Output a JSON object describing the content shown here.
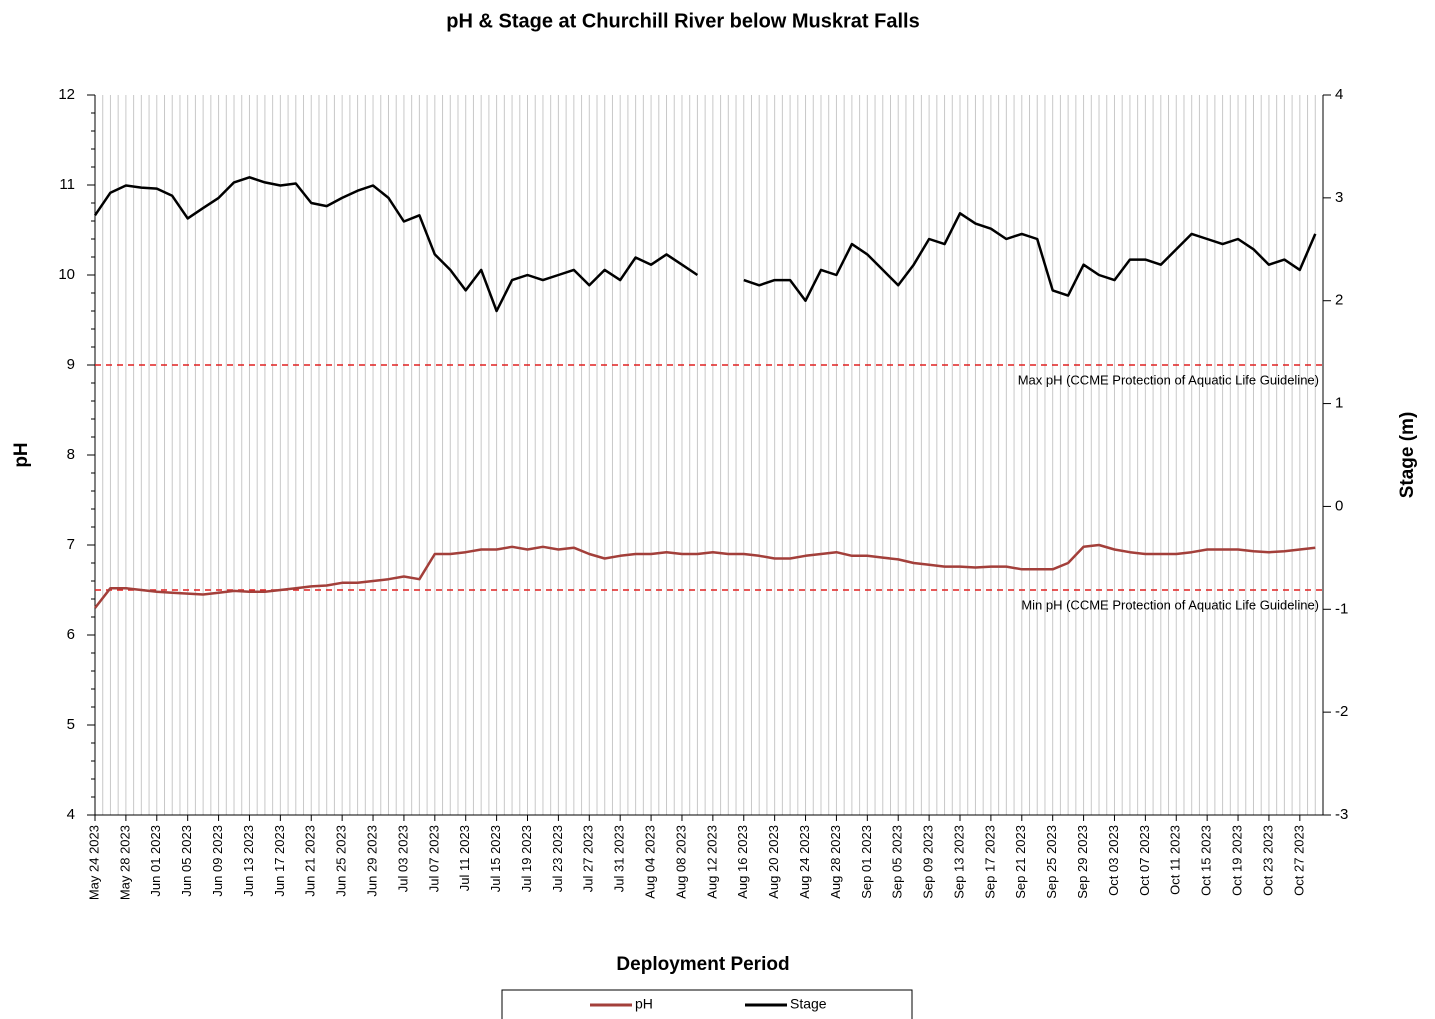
{
  "chart_data": {
    "type": "line",
    "title": "pH & Stage at Churchill River below Muskrat Falls",
    "x_label": "Deployment Period",
    "y_label": "pH",
    "y2_label": "Stage (m)",
    "xlim": [
      "2023-05-24",
      "2023-10-30"
    ],
    "xticks": [
      {
        "value": "2023-05-24",
        "label": "May 24 2023"
      },
      {
        "value": "2023-05-28",
        "label": "May 28 2023"
      },
      {
        "value": "2023-06-01",
        "label": "Jun 01 2023"
      },
      {
        "value": "2023-06-05",
        "label": "Jun 05 2023"
      },
      {
        "value": "2023-06-09",
        "label": "Jun 09 2023"
      },
      {
        "value": "2023-06-13",
        "label": "Jun 13 2023"
      },
      {
        "value": "2023-06-17",
        "label": "Jun 17 2023"
      },
      {
        "value": "2023-06-21",
        "label": "Jun 21 2023"
      },
      {
        "value": "2023-06-25",
        "label": "Jun 25 2023"
      },
      {
        "value": "2023-06-29",
        "label": "Jun 29 2023"
      },
      {
        "value": "2023-07-03",
        "label": "Jul 03 2023"
      },
      {
        "value": "2023-07-07",
        "label": "Jul 07 2023"
      },
      {
        "value": "2023-07-11",
        "label": "Jul 11 2023"
      },
      {
        "value": "2023-07-15",
        "label": "Jul 15 2023"
      },
      {
        "value": "2023-07-19",
        "label": "Jul 19 2023"
      },
      {
        "value": "2023-07-23",
        "label": "Jul 23 2023"
      },
      {
        "value": "2023-07-27",
        "label": "Jul 27 2023"
      },
      {
        "value": "2023-07-31",
        "label": "Jul 31 2023"
      },
      {
        "value": "2023-08-04",
        "label": "Aug 04 2023"
      },
      {
        "value": "2023-08-08",
        "label": "Aug 08 2023"
      },
      {
        "value": "2023-08-12",
        "label": "Aug 12 2023"
      },
      {
        "value": "2023-08-16",
        "label": "Aug 16 2023"
      },
      {
        "value": "2023-08-20",
        "label": "Aug 20 2023"
      },
      {
        "value": "2023-08-24",
        "label": "Aug 24 2023"
      },
      {
        "value": "2023-08-28",
        "label": "Aug 28 2023"
      },
      {
        "value": "2023-09-01",
        "label": "Sep 01 2023"
      },
      {
        "value": "2023-09-05",
        "label": "Sep 05 2023"
      },
      {
        "value": "2023-09-09",
        "label": "Sep 09 2023"
      },
      {
        "value": "2023-09-13",
        "label": "Sep 13 2023"
      },
      {
        "value": "2023-09-17",
        "label": "Sep 17 2023"
      },
      {
        "value": "2023-09-21",
        "label": "Sep 21 2023"
      },
      {
        "value": "2023-09-25",
        "label": "Sep 25 2023"
      },
      {
        "value": "2023-09-29",
        "label": "Sep 29 2023"
      },
      {
        "value": "2023-10-03",
        "label": "Oct 03 2023"
      },
      {
        "value": "2023-10-07",
        "label": "Oct 07 2023"
      },
      {
        "value": "2023-10-11",
        "label": "Oct 11 2023"
      },
      {
        "value": "2023-10-15",
        "label": "Oct 15 2023"
      },
      {
        "value": "2023-10-19",
        "label": "Oct 19 2023"
      },
      {
        "value": "2023-10-23",
        "label": "Oct 23 2023"
      },
      {
        "value": "2023-10-27",
        "label": "Oct 27 2023"
      }
    ],
    "ylim": [
      4,
      12
    ],
    "yticks": [
      4,
      5,
      6,
      7,
      8,
      9,
      10,
      11,
      12
    ],
    "y2lim": [
      -3,
      4
    ],
    "y2ticks": [
      -3,
      -2,
      -1,
      0,
      1,
      2,
      3,
      4
    ],
    "grid": true,
    "x": [
      "2023-05-24",
      "2023-05-26",
      "2023-05-28",
      "2023-05-30",
      "2023-06-01",
      "2023-06-03",
      "2023-06-05",
      "2023-06-07",
      "2023-06-09",
      "2023-06-11",
      "2023-06-13",
      "2023-06-15",
      "2023-06-17",
      "2023-06-19",
      "2023-06-21",
      "2023-06-23",
      "2023-06-25",
      "2023-06-27",
      "2023-06-29",
      "2023-07-01",
      "2023-07-03",
      "2023-07-05",
      "2023-07-07",
      "2023-07-09",
      "2023-07-11",
      "2023-07-13",
      "2023-07-15",
      "2023-07-17",
      "2023-07-19",
      "2023-07-21",
      "2023-07-23",
      "2023-07-25",
      "2023-07-27",
      "2023-07-29",
      "2023-07-31",
      "2023-08-02",
      "2023-08-04",
      "2023-08-06",
      "2023-08-08",
      "2023-08-10",
      "2023-08-12",
      "2023-08-14",
      "2023-08-16",
      "2023-08-18",
      "2023-08-20",
      "2023-08-22",
      "2023-08-24",
      "2023-08-26",
      "2023-08-28",
      "2023-08-30",
      "2023-09-01",
      "2023-09-03",
      "2023-09-05",
      "2023-09-07",
      "2023-09-09",
      "2023-09-11",
      "2023-09-13",
      "2023-09-15",
      "2023-09-17",
      "2023-09-19",
      "2023-09-21",
      "2023-09-23",
      "2023-09-25",
      "2023-09-27",
      "2023-09-29",
      "2023-10-01",
      "2023-10-03",
      "2023-10-05",
      "2023-10-07",
      "2023-10-09",
      "2023-10-11",
      "2023-10-13",
      "2023-10-15",
      "2023-10-17",
      "2023-10-19",
      "2023-10-21",
      "2023-10-23",
      "2023-10-25",
      "2023-10-27",
      "2023-10-29"
    ],
    "series": [
      {
        "name": "pH",
        "color": "#a33f3a",
        "axis": "y",
        "values": [
          6.3,
          6.52,
          6.52,
          6.5,
          6.48,
          6.47,
          6.46,
          6.45,
          6.47,
          6.49,
          6.48,
          6.48,
          6.5,
          6.52,
          6.54,
          6.55,
          6.58,
          6.58,
          6.6,
          6.62,
          6.65,
          6.62,
          6.9,
          6.9,
          6.92,
          6.95,
          6.95,
          6.98,
          6.95,
          6.98,
          6.95,
          6.97,
          6.9,
          6.85,
          6.88,
          6.9,
          6.9,
          6.92,
          6.9,
          6.9,
          6.92,
          6.9,
          6.9,
          6.88,
          6.85,
          6.85,
          6.88,
          6.9,
          6.92,
          6.88,
          6.88,
          6.86,
          6.84,
          6.8,
          6.78,
          6.76,
          6.76,
          6.75,
          6.76,
          6.76,
          6.73,
          6.73,
          6.73,
          6.8,
          6.98,
          7.0,
          6.95,
          6.92,
          6.9,
          6.9,
          6.9,
          6.92,
          6.95,
          6.95,
          6.95,
          6.93,
          6.92,
          6.93,
          6.95,
          6.97
        ]
      },
      {
        "name": "Stage",
        "color": "#000000",
        "axis": "y2",
        "values": [
          2.83,
          3.05,
          3.12,
          3.1,
          3.09,
          3.02,
          2.8,
          2.9,
          3.0,
          3.15,
          3.2,
          3.15,
          3.12,
          3.14,
          2.95,
          2.92,
          3.0,
          3.07,
          3.12,
          3.0,
          2.77,
          2.83,
          2.45,
          2.3,
          2.1,
          2.3,
          1.9,
          2.2,
          2.25,
          2.2,
          2.25,
          2.3,
          2.15,
          2.3,
          2.2,
          2.42,
          2.35,
          2.45,
          2.35,
          2.25,
          null,
          null,
          2.2,
          2.15,
          2.2,
          2.2,
          2.0,
          2.3,
          2.25,
          2.55,
          2.45,
          2.3,
          2.15,
          2.35,
          2.6,
          2.55,
          2.85,
          2.75,
          2.7,
          2.6,
          2.65,
          2.6,
          2.1,
          2.05,
          2.35,
          2.25,
          2.2,
          2.4,
          2.4,
          2.35,
          2.5,
          2.65,
          2.6,
          2.55,
          2.6,
          2.5,
          2.35,
          2.4,
          2.3,
          2.65
        ]
      }
    ],
    "reference_lines": [
      {
        "value": 9,
        "label": "Max pH (CCME Protection of Aquatic Life Guideline)",
        "color": "#e02020"
      },
      {
        "value": 6.5,
        "label": "Min pH (CCME Protection of Aquatic Life Guideline)",
        "color": "#e02020"
      }
    ]
  }
}
